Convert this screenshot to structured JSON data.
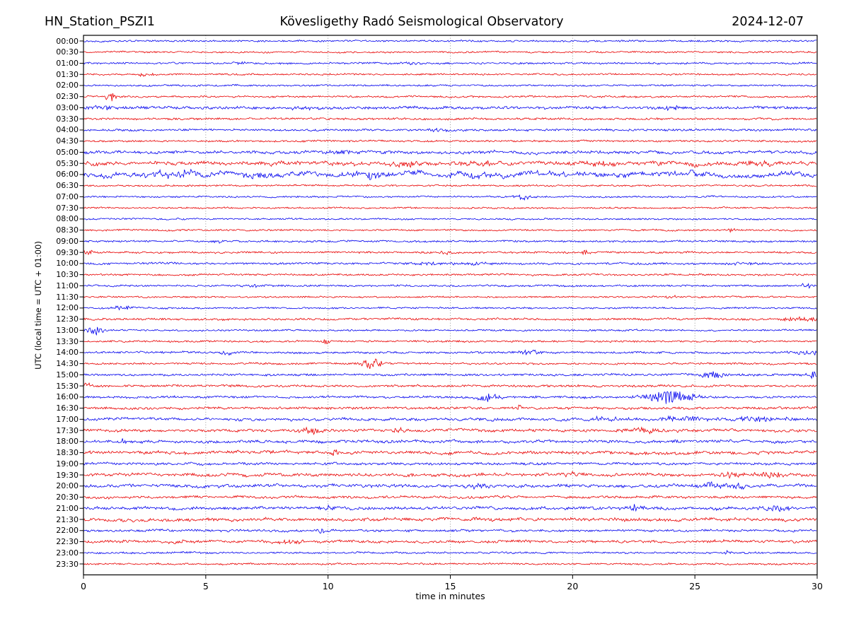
{
  "header": {
    "station": "HN_Station_PSZI1",
    "observatory": "Kövesligethy Radó Seismological Observatory",
    "date": "2024-12-07"
  },
  "chart_data": {
    "type": "line",
    "subtype": "helicorder-seismogram",
    "title": "Kövesligethy Radó Seismological Observatory",
    "station": "HN_Station_PSZI1",
    "date": "2024-12-07",
    "xlabel": "time in minutes",
    "ylabel": "UTC (local time = UTC + 01:00)",
    "xlim": [
      0,
      30
    ],
    "xticks": [
      0,
      5,
      10,
      15,
      20,
      25,
      30
    ],
    "grid_minutes": [
      5,
      10,
      15,
      20,
      25
    ],
    "minutes_per_row": 30,
    "grid_on": true,
    "colors": {
      "blue": "#0000ee",
      "red": "#e80000",
      "grid": "#808080",
      "axis": "#000000"
    },
    "rows": [
      {
        "time": "00:00",
        "color": "blue",
        "noise_amp": 1.0,
        "lf_amp": 0.3,
        "bursts": []
      },
      {
        "time": "00:30",
        "color": "red",
        "noise_amp": 1.0,
        "lf_amp": 0.3,
        "bursts": []
      },
      {
        "time": "01:00",
        "color": "blue",
        "noise_amp": 1.1,
        "lf_amp": 0.35,
        "bursts": [
          [
            6.5,
            0.3,
            1.2
          ],
          [
            13.5,
            0.3,
            1.2
          ]
        ]
      },
      {
        "time": "01:30",
        "color": "red",
        "noise_amp": 1.0,
        "lf_amp": 0.3,
        "bursts": [
          [
            2.5,
            0.3,
            1.3
          ]
        ]
      },
      {
        "time": "02:00",
        "color": "blue",
        "noise_amp": 1.0,
        "lf_amp": 0.3,
        "bursts": []
      },
      {
        "time": "02:30",
        "color": "red",
        "noise_amp": 1.1,
        "lf_amp": 0.35,
        "bursts": [
          [
            1.1,
            0.15,
            4.0
          ]
        ]
      },
      {
        "time": "03:00",
        "color": "blue",
        "noise_amp": 1.6,
        "lf_amp": 0.6,
        "bursts": [
          [
            0.8,
            0.5,
            1.5
          ],
          [
            9.0,
            0.6,
            1.2
          ],
          [
            24.0,
            0.3,
            2.0
          ]
        ]
      },
      {
        "time": "03:30",
        "color": "red",
        "noise_amp": 1.2,
        "lf_amp": 0.4,
        "bursts": []
      },
      {
        "time": "04:00",
        "color": "blue",
        "noise_amp": 1.2,
        "lf_amp": 0.4,
        "bursts": [
          [
            14.3,
            0.3,
            1.3
          ]
        ]
      },
      {
        "time": "04:30",
        "color": "red",
        "noise_amp": 1.1,
        "lf_amp": 0.35,
        "bursts": []
      },
      {
        "time": "05:00",
        "color": "blue",
        "noise_amp": 1.6,
        "lf_amp": 0.8,
        "bursts": [
          [
            10.5,
            0.5,
            1.5
          ]
        ]
      },
      {
        "time": "05:30",
        "color": "red",
        "noise_amp": 2.0,
        "lf_amp": 1.3,
        "bursts": [
          [
            13.0,
            0.5,
            2.0
          ],
          [
            16.5,
            0.4,
            1.8
          ],
          [
            21.0,
            0.4,
            2.0
          ],
          [
            27.5,
            0.5,
            2.0
          ]
        ]
      },
      {
        "time": "06:00",
        "color": "blue",
        "noise_amp": 2.3,
        "lf_amp": 2.0,
        "bursts": [
          [
            3.7,
            0.9,
            3.0
          ],
          [
            7.0,
            0.6,
            2.0
          ],
          [
            12.0,
            0.7,
            2.2
          ],
          [
            15.5,
            0.8,
            1.8
          ]
        ]
      },
      {
        "time": "06:30",
        "color": "red",
        "noise_amp": 1.0,
        "lf_amp": 0.3,
        "bursts": []
      },
      {
        "time": "07:00",
        "color": "blue",
        "noise_amp": 1.0,
        "lf_amp": 0.3,
        "bursts": [
          [
            18.0,
            0.3,
            2.2
          ]
        ]
      },
      {
        "time": "07:30",
        "color": "red",
        "noise_amp": 1.0,
        "lf_amp": 0.3,
        "bursts": []
      },
      {
        "time": "08:00",
        "color": "blue",
        "noise_amp": 1.0,
        "lf_amp": 0.3,
        "bursts": []
      },
      {
        "time": "08:30",
        "color": "red",
        "noise_amp": 1.0,
        "lf_amp": 0.3,
        "bursts": [
          [
            26.5,
            0.1,
            1.5
          ]
        ]
      },
      {
        "time": "09:00",
        "color": "blue",
        "noise_amp": 1.1,
        "lf_amp": 0.3,
        "bursts": [
          [
            5.5,
            0.15,
            1.5
          ]
        ]
      },
      {
        "time": "09:30",
        "color": "red",
        "noise_amp": 1.1,
        "lf_amp": 0.35,
        "bursts": [
          [
            0.25,
            0.15,
            3.0
          ],
          [
            14.8,
            0.15,
            2.2
          ],
          [
            20.5,
            0.12,
            2.2
          ]
        ]
      },
      {
        "time": "10:00",
        "color": "blue",
        "noise_amp": 1.2,
        "lf_amp": 0.4,
        "bursts": [
          [
            15.0,
            1.5,
            1.1
          ],
          [
            27.0,
            0.5,
            1.5
          ]
        ]
      },
      {
        "time": "10:30",
        "color": "red",
        "noise_amp": 1.1,
        "lf_amp": 0.35,
        "bursts": []
      },
      {
        "time": "11:00",
        "color": "blue",
        "noise_amp": 1.1,
        "lf_amp": 0.35,
        "bursts": [
          [
            7.0,
            0.4,
            1.3
          ],
          [
            29.5,
            0.3,
            1.7
          ]
        ]
      },
      {
        "time": "11:30",
        "color": "red",
        "noise_amp": 1.0,
        "lf_amp": 0.3,
        "bursts": [
          [
            24.0,
            0.15,
            1.8
          ]
        ]
      },
      {
        "time": "12:00",
        "color": "blue",
        "noise_amp": 1.0,
        "lf_amp": 0.3,
        "bursts": [
          [
            1.6,
            0.25,
            2.2
          ]
        ]
      },
      {
        "time": "12:30",
        "color": "red",
        "noise_amp": 1.2,
        "lf_amp": 0.4,
        "bursts": [
          [
            29.3,
            0.7,
            1.6
          ]
        ]
      },
      {
        "time": "13:00",
        "color": "blue",
        "noise_amp": 1.0,
        "lf_amp": 0.3,
        "bursts": [
          [
            0.45,
            0.25,
            4.0
          ]
        ]
      },
      {
        "time": "13:30",
        "color": "red",
        "noise_amp": 1.1,
        "lf_amp": 0.35,
        "bursts": [
          [
            9.9,
            0.15,
            1.8
          ]
        ]
      },
      {
        "time": "14:00",
        "color": "blue",
        "noise_amp": 1.2,
        "lf_amp": 0.4,
        "bursts": [
          [
            5.8,
            0.3,
            1.4
          ],
          [
            18.2,
            0.3,
            2.2
          ],
          [
            29.5,
            0.4,
            1.8
          ]
        ]
      },
      {
        "time": "14:30",
        "color": "red",
        "noise_amp": 1.1,
        "lf_amp": 0.35,
        "bursts": [
          [
            11.8,
            0.3,
            5.0
          ]
        ]
      },
      {
        "time": "15:00",
        "color": "blue",
        "noise_amp": 1.3,
        "lf_amp": 0.4,
        "bursts": [
          [
            25.7,
            0.3,
            4.0
          ],
          [
            30.0,
            0.25,
            5.0
          ]
        ]
      },
      {
        "time": "15:30",
        "color": "red",
        "noise_amp": 1.3,
        "lf_amp": 0.4,
        "bursts": [
          [
            0.15,
            0.15,
            3.0
          ]
        ]
      },
      {
        "time": "16:00",
        "color": "blue",
        "noise_amp": 1.3,
        "lf_amp": 0.4,
        "bursts": [
          [
            16.5,
            0.35,
            4.0
          ],
          [
            24.0,
            0.7,
            6.0
          ]
        ]
      },
      {
        "time": "16:30",
        "color": "red",
        "noise_amp": 1.4,
        "lf_amp": 0.5,
        "bursts": [
          [
            17.8,
            0.12,
            2.5
          ]
        ]
      },
      {
        "time": "17:00",
        "color": "blue",
        "noise_amp": 1.5,
        "lf_amp": 0.7,
        "bursts": [
          [
            21.5,
            0.8,
            1.5
          ],
          [
            24.5,
            0.8,
            2.0
          ],
          [
            27.5,
            0.8,
            2.0
          ]
        ]
      },
      {
        "time": "17:30",
        "color": "red",
        "noise_amp": 1.5,
        "lf_amp": 0.7,
        "bursts": [
          [
            9.4,
            0.35,
            3.0
          ],
          [
            12.9,
            0.25,
            2.0
          ],
          [
            23.0,
            0.8,
            1.8
          ]
        ]
      },
      {
        "time": "18:00",
        "color": "blue",
        "noise_amp": 1.6,
        "lf_amp": 0.7,
        "bursts": [
          [
            1.6,
            0.08,
            4.5
          ]
        ]
      },
      {
        "time": "18:30",
        "color": "red",
        "noise_amp": 1.7,
        "lf_amp": 0.8,
        "bursts": [
          [
            10.3,
            0.1,
            3.0
          ]
        ]
      },
      {
        "time": "19:00",
        "color": "blue",
        "noise_amp": 1.4,
        "lf_amp": 0.6,
        "bursts": []
      },
      {
        "time": "19:30",
        "color": "red",
        "noise_amp": 1.7,
        "lf_amp": 0.8,
        "bursts": [
          [
            19.9,
            0.15,
            2.5
          ],
          [
            26.5,
            0.4,
            2.2
          ],
          [
            28.0,
            0.5,
            2.5
          ]
        ]
      },
      {
        "time": "20:00",
        "color": "blue",
        "noise_amp": 1.7,
        "lf_amp": 0.9,
        "bursts": [
          [
            16.0,
            0.5,
            1.8
          ],
          [
            25.8,
            0.4,
            3.0
          ],
          [
            26.8,
            0.3,
            2.5
          ]
        ]
      },
      {
        "time": "20:30",
        "color": "red",
        "noise_amp": 1.4,
        "lf_amp": 0.6,
        "bursts": []
      },
      {
        "time": "21:00",
        "color": "blue",
        "noise_amp": 1.6,
        "lf_amp": 0.8,
        "bursts": [
          [
            10.0,
            0.3,
            1.8
          ],
          [
            22.6,
            0.35,
            2.5
          ],
          [
            28.3,
            0.5,
            2.0
          ]
        ]
      },
      {
        "time": "21:30",
        "color": "red",
        "noise_amp": 1.7,
        "lf_amp": 0.9,
        "bursts": []
      },
      {
        "time": "22:00",
        "color": "blue",
        "noise_amp": 1.3,
        "lf_amp": 0.5,
        "bursts": [
          [
            9.7,
            0.1,
            2.5
          ]
        ]
      },
      {
        "time": "22:30",
        "color": "red",
        "noise_amp": 1.5,
        "lf_amp": 0.7,
        "bursts": [
          [
            3.8,
            0.15,
            2.5
          ],
          [
            8.6,
            0.5,
            1.5
          ]
        ]
      },
      {
        "time": "23:00",
        "color": "blue",
        "noise_amp": 1.1,
        "lf_amp": 0.3,
        "bursts": [
          [
            26.3,
            0.12,
            2.2
          ]
        ]
      },
      {
        "time": "23:30",
        "color": "red",
        "noise_amp": 1.0,
        "lf_amp": 0.3,
        "bursts": []
      }
    ]
  }
}
